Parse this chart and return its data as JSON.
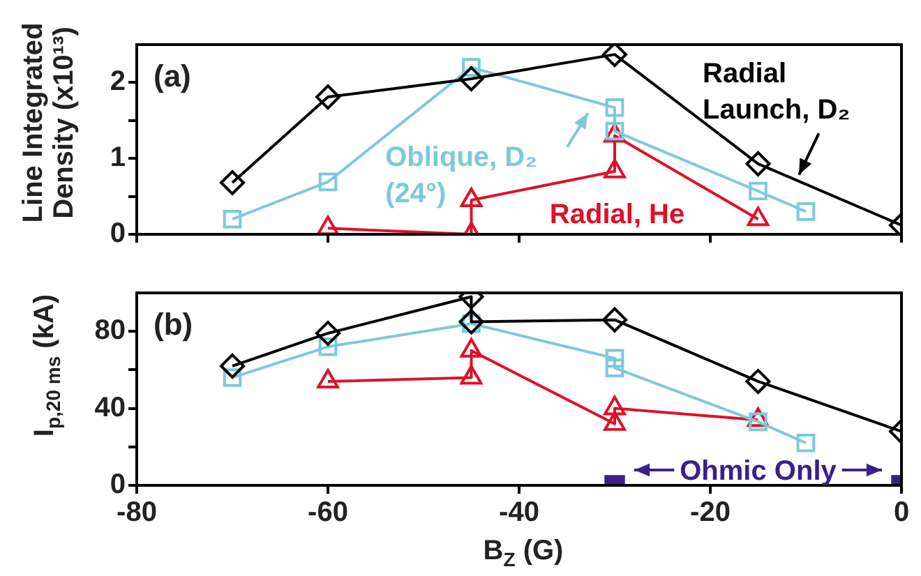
{
  "chart_data": [
    {
      "type": "line",
      "ylabel": "Line Integrated Density (x10¹³)",
      "annotations": [
        "(a)"
      ],
      "xlim": [
        -80,
        0
      ],
      "xticks": [
        {
          "value": -80,
          "label": null
        },
        {
          "value": -60,
          "label": null
        },
        {
          "value": -40,
          "label": null
        },
        {
          "value": -20,
          "label": null
        },
        {
          "value": 0,
          "label": null
        }
      ],
      "ylim": [
        0,
        2.5
      ],
      "yticks": [
        0,
        {
          "value": 0.5,
          "label": null
        },
        1,
        {
          "value": 1.5,
          "label": null
        },
        2
      ],
      "tick_labels": "y",
      "grid": false,
      "line_style": "solid",
      "series": [
        {
          "name": "Radial Launch, D₂",
          "color": "#000000",
          "marker": "diamond",
          "x": [
            -70,
            -60,
            -45,
            -30,
            -15,
            0
          ],
          "values": [
            0.68,
            1.81,
            2.05,
            2.37,
            0.93,
            0.12
          ]
        },
        {
          "name": "Oblique, D₂ (24°)",
          "color": "#7ec8dc",
          "marker": "square",
          "x": [
            -70,
            -60,
            -45,
            -30,
            -30,
            -15,
            -10
          ],
          "values": [
            0.2,
            0.69,
            2.2,
            1.67,
            1.36,
            0.57,
            0.3
          ]
        },
        {
          "name": "Radial, He",
          "color": "#e0102a",
          "marker": "triangle",
          "x": [
            -60,
            -45,
            -45,
            -30,
            -30,
            -15
          ],
          "values": [
            0.08,
            0,
            0.45,
            0.83,
            1.3,
            0.2
          ]
        }
      ]
    },
    {
      "type": "line",
      "xlabel": "B$_{Z}$ (G)",
      "ylabel": "I$_{p,20 ms}$ (kA)",
      "annotations": [
        "(b)"
      ],
      "xlim": [
        -80,
        0
      ],
      "xticks": [
        -80,
        -60,
        -40,
        -20,
        0
      ],
      "ylim": [
        0,
        100
      ],
      "yticks": [
        0,
        {
          "value": 20,
          "label": null
        },
        40,
        {
          "value": 60,
          "label": null
        },
        80
      ],
      "grid": false,
      "legend": "bottom right",
      "line_style": "solid",
      "series": [
        {
          "color": "#000000",
          "marker": "diamond",
          "x": [
            -70,
            -60,
            -45,
            -45,
            -30,
            -15,
            0
          ],
          "values": [
            62,
            79,
            98,
            85,
            86,
            54,
            28
          ]
        },
        {
          "color": "#7ec8dc",
          "marker": "square",
          "x": [
            -70,
            -60,
            -45,
            -30,
            -30,
            -15,
            -10
          ],
          "values": [
            56,
            72,
            84,
            66,
            61,
            33,
            22
          ]
        },
        {
          "color": "#e0102a",
          "marker": "triangle",
          "x": [
            -60,
            -45,
            -45,
            -30,
            -30,
            -15
          ],
          "values": [
            54,
            56,
            70,
            32,
            40,
            34
          ]
        },
        {
          "type": "scatter",
          "name": "Ohmic Only",
          "color": "#3b1f8c",
          "marker": "square",
          "x": [
            -30,
            0
          ],
          "values": [
            0,
            0
          ]
        }
      ]
    }
  ]
}
